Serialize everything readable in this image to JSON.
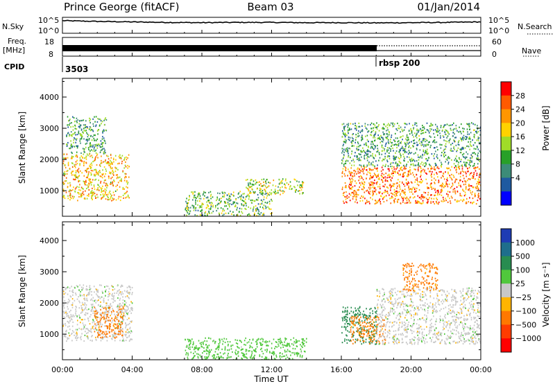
{
  "header": {
    "station": "Prince George (fitACF)",
    "beam": "Beam 03",
    "date": "01/Jan/2014"
  },
  "top_strip": {
    "left_label": "N.Sky",
    "right_label": "N.Search",
    "left_ticks": [
      "10^5",
      "10^0"
    ],
    "right_ticks": [
      "10^5",
      "10^0"
    ]
  },
  "freq_strip": {
    "left_label_1": "Freq.",
    "left_label_2": "[MHz]",
    "left_ticks": [
      "18",
      "8"
    ],
    "right_label": "Nave",
    "right_ticks": [
      "60",
      "0"
    ]
  },
  "cpid": {
    "label": "CPID",
    "segments": [
      {
        "start_hour": 0.0,
        "text": "3503"
      },
      {
        "start_hour": 18.0,
        "text": "rbsp 200"
      }
    ]
  },
  "panels": {
    "power": {
      "ylabel": "Slant Range [km]",
      "cbar_label": "Power [dB]",
      "cbar_ticks": [
        "28",
        "24",
        "20",
        "16",
        "12",
        "8",
        "4"
      ],
      "cbar_colors": [
        "#ff0000",
        "#ff5a00",
        "#ff9600",
        "#ffd200",
        "#a0dc28",
        "#28a028",
        "#3c8c78",
        "#1e5aa0",
        "#0000ff"
      ]
    },
    "velocity": {
      "ylabel": "Slant Range [km]",
      "cbar_label": "Velocity [m s⁻¹]",
      "cbar_ticks": [
        "1000",
        "500",
        "100",
        "25",
        "−25",
        "−100",
        "−500",
        "−1000"
      ],
      "cbar_colors": [
        "#1e3cb4",
        "#1e6e8c",
        "#288c50",
        "#50c83c",
        "#c8c8c8",
        "#ffb400",
        "#ff7800",
        "#ff3c00",
        "#ff0000"
      ]
    }
  },
  "x_axis": {
    "label": "Time UT",
    "ticks": [
      "00:00",
      "04:00",
      "08:00",
      "12:00",
      "16:00",
      "20:00",
      "00:00"
    ]
  },
  "chart_data": [
    {
      "type": "line",
      "title": "Prince George (fitACF)  Beam 03  01/Jan/2014",
      "series": [
        {
          "name": "N.Sky",
          "x_hours": [
            0,
            2,
            4,
            6,
            8,
            10,
            12,
            14,
            16,
            18,
            20,
            22,
            24
          ],
          "values_log10": [
            4.5,
            4.2,
            4.0,
            3.8,
            3.7,
            3.8,
            3.8,
            3.7,
            3.7,
            3.6,
            3.7,
            3.8,
            4.0
          ]
        }
      ],
      "ylabel": "N.Sky",
      "ylim": [
        0,
        5
      ],
      "grid": false
    },
    {
      "type": "heatmap",
      "ylabel": "Slant Range [km]",
      "xlabel": "Time UT",
      "xlim": [
        0,
        24
      ],
      "ylim": [
        180,
        4600
      ],
      "colorbar": "Power [dB]",
      "clim": [
        0,
        30
      ],
      "regions": [
        {
          "t_start": 0.0,
          "t_end": 3.8,
          "range_start": 700,
          "range_end": 2200,
          "power_db": 20
        },
        {
          "t_start": 0.2,
          "t_end": 2.5,
          "range_start": 2200,
          "range_end": 3400,
          "power_db": 10
        },
        {
          "t_start": 7.0,
          "t_end": 12.0,
          "range_start": 200,
          "range_end": 1000,
          "power_db": 12
        },
        {
          "t_start": 10.5,
          "t_end": 13.8,
          "range_start": 900,
          "range_end": 1400,
          "power_db": 16
        },
        {
          "t_start": 16.0,
          "t_end": 24.0,
          "range_start": 600,
          "range_end": 1800,
          "power_db": 24
        },
        {
          "t_start": 16.0,
          "t_end": 24.0,
          "range_start": 1800,
          "range_end": 3200,
          "power_db": 10
        }
      ]
    },
    {
      "type": "heatmap",
      "ylabel": "Slant Range [km]",
      "xlabel": "Time UT",
      "xlim": [
        0,
        24
      ],
      "ylim": [
        180,
        4600
      ],
      "colorbar": "Velocity [m s-1]",
      "clim": [
        -1000,
        1000
      ],
      "regions": [
        {
          "t_start": 0.0,
          "t_end": 4.0,
          "range_start": 800,
          "range_end": 2600,
          "velocity": 0
        },
        {
          "t_start": 1.8,
          "t_end": 3.5,
          "range_start": 900,
          "range_end": 1900,
          "velocity": -300
        },
        {
          "t_start": 7.0,
          "t_end": 14.0,
          "range_start": 200,
          "range_end": 900,
          "velocity": 60
        },
        {
          "t_start": 16.0,
          "t_end": 18.0,
          "range_start": 700,
          "range_end": 1900,
          "velocity": 300
        },
        {
          "t_start": 16.5,
          "t_end": 18.5,
          "range_start": 700,
          "range_end": 1600,
          "velocity": -200
        },
        {
          "t_start": 18.0,
          "t_end": 24.0,
          "range_start": 700,
          "range_end": 2500,
          "velocity": 0
        },
        {
          "t_start": 19.5,
          "t_end": 21.5,
          "range_start": 2400,
          "range_end": 3300,
          "velocity": -200
        }
      ]
    }
  ]
}
